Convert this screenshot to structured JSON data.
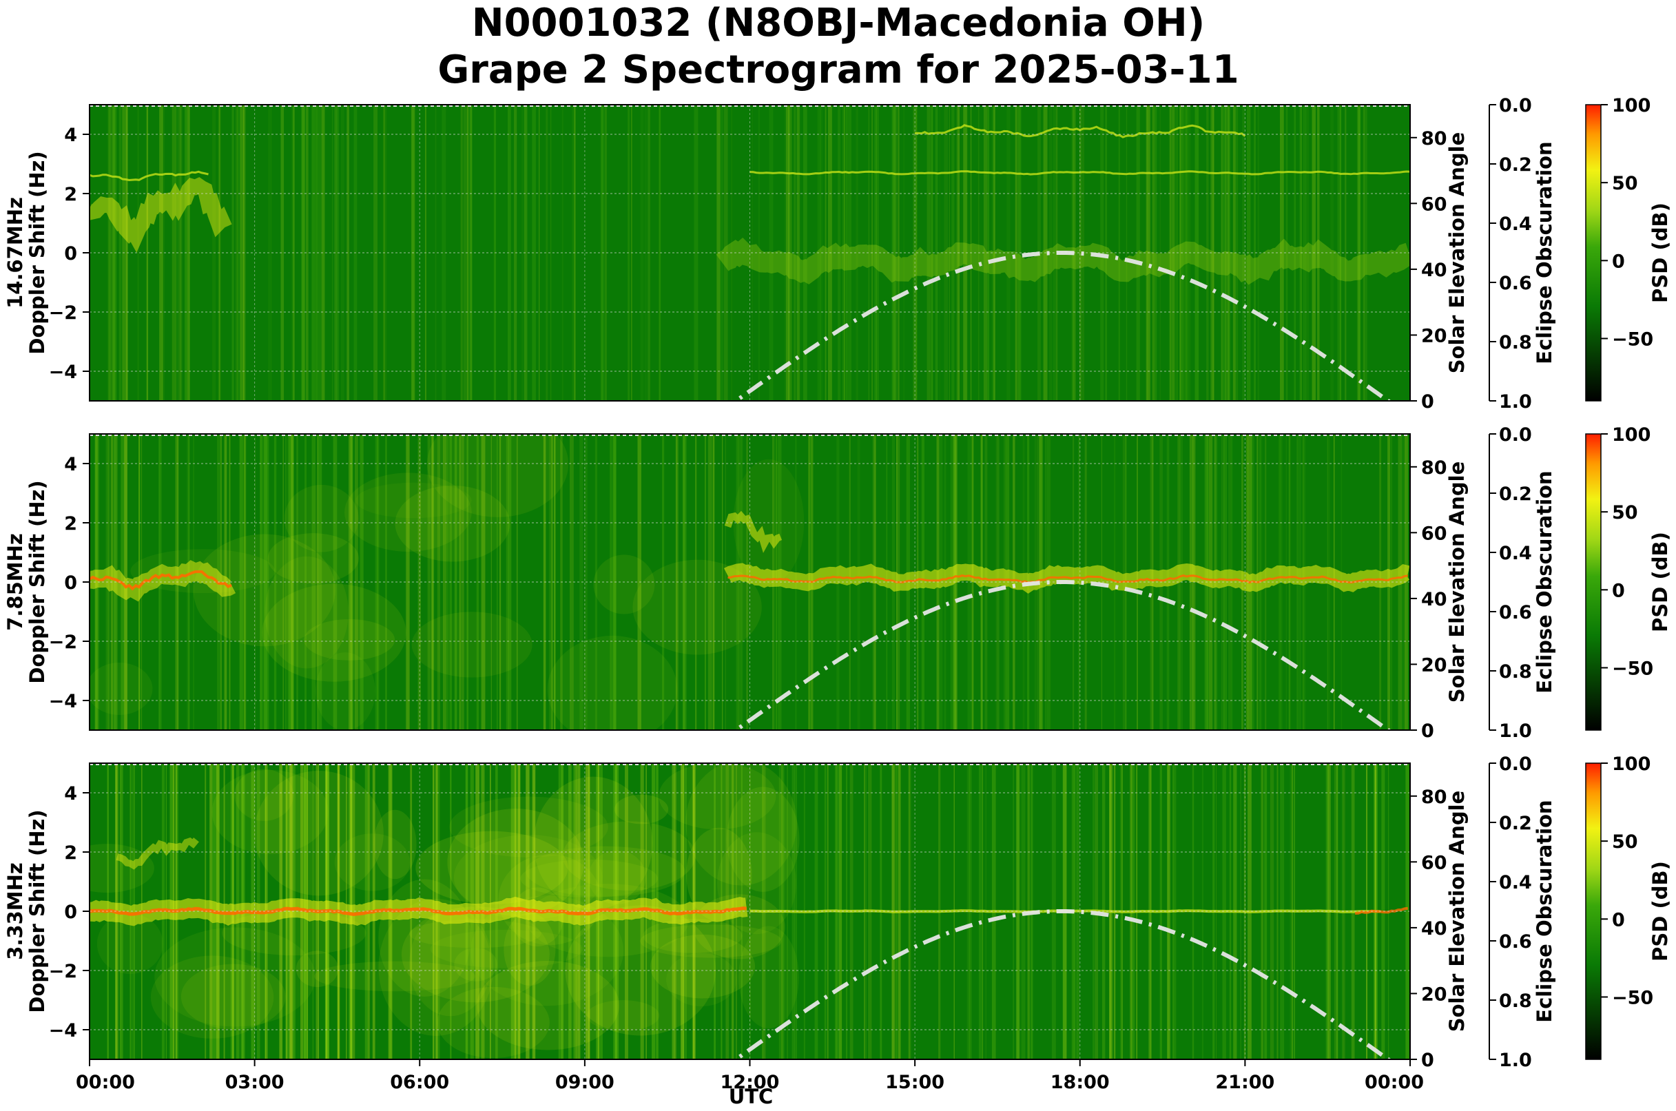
{
  "title_line1": "N0001032 (N8OBJ-Macedonia OH)",
  "title_line2": "Grape 2 Spectrogram for 2025-03-11",
  "chart_data": [
    {
      "type": "heatmap",
      "band": "14.67MHz",
      "ylabel_line1": "14.67MHz",
      "ylabel_line2": "Doppler Shift (Hz)",
      "ylim": [
        -5,
        5
      ],
      "yticks": [
        "4",
        "2",
        "0",
        "−2",
        "−4"
      ],
      "right_axis_label": "Solar Elevation Angle",
      "right_axis_ticks": [
        "80",
        "60",
        "40",
        "20",
        "0"
      ],
      "eclipse_axis_label": "Eclipse Obscuration",
      "eclipse_ticks": [
        "0.0",
        "0.2",
        "0.4",
        "0.6",
        "0.8",
        "1.0"
      ],
      "colorbar_label": "PSD (dB)",
      "colorbar_ticks": [
        "100",
        "50",
        "0",
        "−50"
      ],
      "carrier_strength": 0.35,
      "background_level": 0.0,
      "features": "weak carrier near 0 Hz after 12:00; second trace near 2.7 Hz and 4 Hz from 12:00 to 21:00",
      "solar_elevation_peak_deg": 45,
      "solar_noon_utc": "17:40"
    },
    {
      "type": "heatmap",
      "band": "7.85MHz",
      "ylabel_line1": "7.85MHz",
      "ylabel_line2": "Doppler Shift (Hz)",
      "ylim": [
        -5,
        5
      ],
      "yticks": [
        "4",
        "2",
        "0",
        "−2",
        "−4"
      ],
      "right_axis_label": "Solar Elevation Angle",
      "right_axis_ticks": [
        "80",
        "60",
        "40",
        "20",
        "0"
      ],
      "eclipse_axis_label": "Eclipse Obscuration",
      "eclipse_ticks": [
        "0.0",
        "0.2",
        "0.4",
        "0.6",
        "0.8",
        "1.0"
      ],
      "colorbar_label": "PSD (dB)",
      "colorbar_ticks": [
        "100",
        "50",
        "0",
        "−50"
      ],
      "carrier_strength": 0.8,
      "background_level": 0.2,
      "features": "strong carrier near 0 Hz 00:00-02:30 and 11:40-24:00",
      "solar_elevation_peak_deg": 45,
      "solar_noon_utc": "17:40"
    },
    {
      "type": "heatmap",
      "band": "3.33MHz",
      "ylabel_line1": "3.33MHz",
      "ylabel_line2": "Doppler Shift (Hz)",
      "ylim": [
        -5,
        5
      ],
      "yticks": [
        "4",
        "2",
        "0",
        "−2",
        "−4"
      ],
      "right_axis_label": "Solar Elevation Angle",
      "right_axis_ticks": [
        "80",
        "60",
        "40",
        "20",
        "0"
      ],
      "eclipse_axis_label": "Eclipse Obscuration",
      "eclipse_ticks": [
        "0.0",
        "0.2",
        "0.4",
        "0.6",
        "0.8",
        "1.0"
      ],
      "colorbar_label": "PSD (dB)",
      "colorbar_ticks": [
        "100",
        "50",
        "0",
        "−50"
      ],
      "carrier_strength": 1.0,
      "background_level": 0.55,
      "features": "strong orange carrier near 0 Hz 00:00-12:00, diffuse yellow background overnight",
      "solar_elevation_peak_deg": 45,
      "solar_noon_utc": "17:40"
    }
  ],
  "x_ticks": [
    "00:00",
    "03:00",
    "06:00",
    "09:00",
    "12:00",
    "15:00",
    "18:00",
    "21:00",
    "00:00"
  ],
  "x_range_hours": [
    0,
    24
  ],
  "xlabel": "UTC",
  "colors": {
    "background_green": "#0a7a05",
    "carrier_yellow": "#f2f213",
    "carrier_orange": "#ff6a00",
    "solar_curve": "#e6e6e6",
    "colorbar_top": "#ff1e00",
    "colorbar_bottom": "#000000"
  }
}
